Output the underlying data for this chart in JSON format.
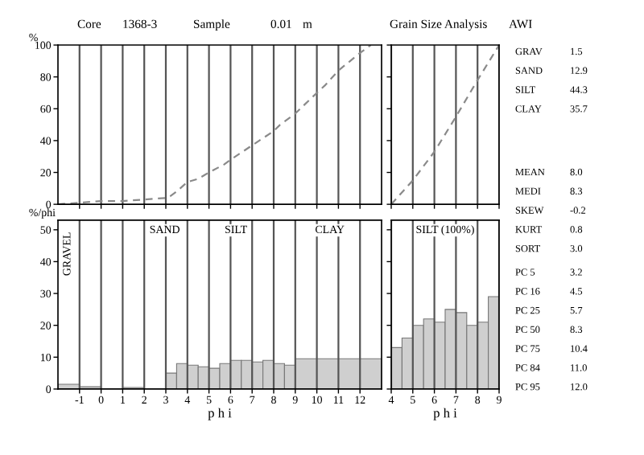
{
  "chart_data": [
    {
      "type": "line",
      "ylabel": "%",
      "x": [
        -2,
        -1,
        0,
        1,
        2,
        3,
        3.2,
        3.5,
        4,
        4.5,
        5,
        5.7,
        6,
        7,
        8,
        8.3,
        9,
        10,
        10.4,
        11,
        12,
        12.5
      ],
      "values": [
        0,
        1,
        2,
        2,
        3,
        4,
        5,
        8,
        14,
        16,
        20,
        25,
        28,
        37,
        46,
        50,
        57,
        70,
        75,
        84,
        95,
        100
      ],
      "color": "#8a8a8a",
      "line_style": "dashed",
      "marker": "none",
      "xlim": [
        -2,
        13
      ],
      "xticks": [
        -1,
        0,
        1,
        2,
        3,
        4,
        5,
        6,
        7,
        8,
        9,
        10,
        11,
        12
      ],
      "ylim": [
        0,
        100
      ],
      "yticks": [
        0,
        20,
        40,
        60,
        80,
        100
      ],
      "grid": "x",
      "tick_labels": "y"
    },
    {
      "type": "line",
      "x": [
        4,
        5,
        6,
        7,
        8,
        9
      ],
      "values": [
        0,
        15,
        33,
        55,
        78,
        100
      ],
      "color": "#8a8a8a",
      "line_style": "dashed",
      "marker": "none",
      "xlim": [
        4,
        9
      ],
      "xticks": [
        4,
        5,
        6,
        7,
        8,
        9
      ],
      "ylim": [
        0,
        100
      ],
      "yticks": [
        0,
        20,
        40,
        60,
        80,
        100
      ],
      "grid": "x",
      "tick_labels": false
    },
    {
      "type": "histogram",
      "ylabel": "%/phi",
      "xlabel": "p h i",
      "bins": [
        -2,
        -1,
        0,
        1,
        2,
        3,
        3.5,
        4,
        4.5,
        5,
        5.5,
        6,
        6.5,
        7,
        7.5,
        8,
        8.5,
        9,
        13
      ],
      "values": [
        1.5,
        0.7,
        null,
        0.5,
        null,
        5,
        8,
        7.5,
        7,
        6.5,
        8,
        9,
        9,
        8.5,
        9,
        8,
        7.5,
        9.5
      ],
      "color": "#cfcfcf",
      "xlim": [
        -2,
        13
      ],
      "xticks": [
        -1,
        0,
        1,
        2,
        3,
        4,
        5,
        6,
        7,
        8,
        9,
        10,
        11,
        12
      ],
      "ylim": [
        0,
        53
      ],
      "yticks": [
        0,
        10,
        20,
        30,
        40,
        50
      ],
      "grid": "x",
      "annotations": [
        "GRAVEL",
        "SAND",
        "SILT",
        "CLAY"
      ]
    },
    {
      "type": "histogram",
      "title": "SILT (100%)",
      "xlabel": "p h i",
      "bins": [
        4,
        4.5,
        5,
        5.5,
        6,
        6.5,
        7,
        7.5,
        8,
        8.5,
        9
      ],
      "values": [
        13,
        16,
        20,
        22,
        21,
        25,
        24,
        20,
        21,
        29
      ],
      "color": "#cfcfcf",
      "xlim": [
        4,
        9
      ],
      "xticks": [
        4,
        5,
        6,
        7,
        8,
        9
      ],
      "ylim": [
        0,
        53
      ],
      "yticks": [
        0,
        10,
        20,
        30,
        40,
        50
      ],
      "grid": "x",
      "tick_labels": "x"
    },
    {
      "type": "other",
      "title": "Grain Size Analysis",
      "annotations": [
        "Core",
        "1368-3",
        "Sample",
        "0.01",
        "m",
        "AWI"
      ]
    },
    {
      "type": "other",
      "categories": [
        "GRAV",
        "SAND",
        "SILT",
        "CLAY"
      ],
      "values": [
        1.5,
        12.9,
        44.3,
        35.7
      ],
      "value_labels": [
        "1.5",
        "12.9",
        "44.3",
        "35.7"
      ]
    },
    {
      "type": "other",
      "categories": [
        "MEAN",
        "MEDI",
        "SKEW",
        "KURT",
        "SORT"
      ],
      "values": [
        8.0,
        8.3,
        -0.2,
        0.8,
        3.0
      ],
      "value_labels": [
        "8.0",
        "8.3",
        "-0.2",
        "0.8",
        "3.0"
      ]
    },
    {
      "type": "other",
      "categories": [
        "PC 5",
        "PC 16",
        "PC 25",
        "PC 50",
        "PC 75",
        "PC 84",
        "PC 95"
      ],
      "values": [
        3.2,
        4.5,
        5.7,
        8.3,
        10.4,
        11.0,
        12.0
      ],
      "value_labels": [
        "3.2",
        "4.5",
        "5.7",
        "8.3",
        "10.4",
        "11.0",
        "12.0"
      ]
    }
  ]
}
